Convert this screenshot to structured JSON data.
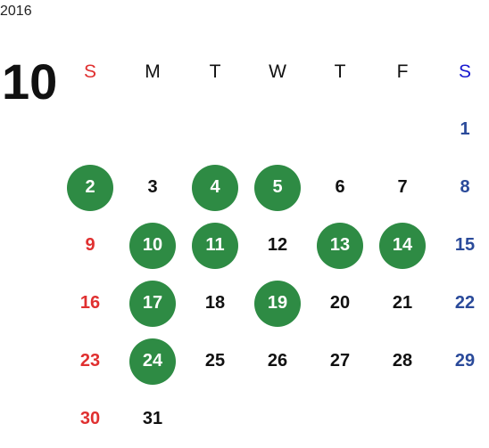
{
  "calendar": {
    "year": "2016",
    "month": "10",
    "weekdays": [
      "S",
      "M",
      "T",
      "W",
      "T",
      "F",
      "S"
    ],
    "highlight_color": "#2e8b44",
    "sunday_color": "#e03030",
    "saturday_color": "#2a4a9a",
    "weeks": [
      [
        {
          "d": ""
        },
        {
          "d": ""
        },
        {
          "d": ""
        },
        {
          "d": ""
        },
        {
          "d": ""
        },
        {
          "d": ""
        },
        {
          "d": "1"
        }
      ],
      [
        {
          "d": "2",
          "hl": true
        },
        {
          "d": "3"
        },
        {
          "d": "4",
          "hl": true
        },
        {
          "d": "5",
          "hl": true
        },
        {
          "d": "6"
        },
        {
          "d": "7"
        },
        {
          "d": "8"
        }
      ],
      [
        {
          "d": "9"
        },
        {
          "d": "10",
          "hl": true
        },
        {
          "d": "11",
          "hl": true
        },
        {
          "d": "12"
        },
        {
          "d": "13",
          "hl": true
        },
        {
          "d": "14",
          "hl": true
        },
        {
          "d": "15"
        }
      ],
      [
        {
          "d": "16"
        },
        {
          "d": "17",
          "hl": true
        },
        {
          "d": "18"
        },
        {
          "d": "19",
          "hl": true
        },
        {
          "d": "20"
        },
        {
          "d": "21"
        },
        {
          "d": "22"
        }
      ],
      [
        {
          "d": "23"
        },
        {
          "d": "24",
          "hl": true
        },
        {
          "d": "25"
        },
        {
          "d": "26"
        },
        {
          "d": "27"
        },
        {
          "d": "28"
        },
        {
          "d": "29"
        }
      ],
      [
        {
          "d": "30"
        },
        {
          "d": "31"
        },
        {
          "d": ""
        },
        {
          "d": ""
        },
        {
          "d": ""
        },
        {
          "d": ""
        },
        {
          "d": ""
        }
      ]
    ]
  }
}
